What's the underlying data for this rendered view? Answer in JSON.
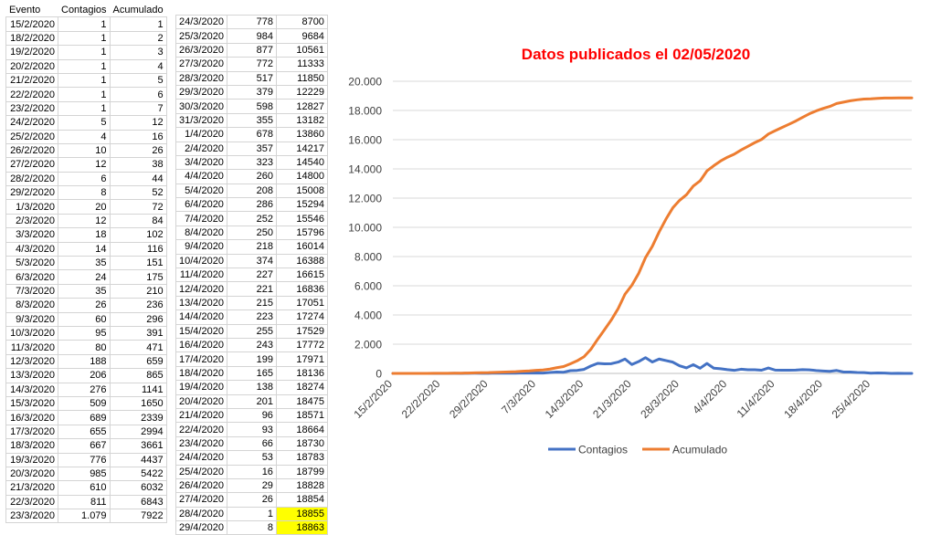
{
  "table1": {
    "headers": [
      "Evento",
      "Contagios",
      "Acumulado"
    ],
    "rows": [
      [
        "15/2/2020",
        "1",
        "1"
      ],
      [
        "18/2/2020",
        "1",
        "2"
      ],
      [
        "19/2/2020",
        "1",
        "3"
      ],
      [
        "20/2/2020",
        "1",
        "4"
      ],
      [
        "21/2/2020",
        "1",
        "5"
      ],
      [
        "22/2/2020",
        "1",
        "6"
      ],
      [
        "23/2/2020",
        "1",
        "7"
      ],
      [
        "24/2/2020",
        "5",
        "12"
      ],
      [
        "25/2/2020",
        "4",
        "16"
      ],
      [
        "26/2/2020",
        "10",
        "26"
      ],
      [
        "27/2/2020",
        "12",
        "38"
      ],
      [
        "28/2/2020",
        "6",
        "44"
      ],
      [
        "29/2/2020",
        "8",
        "52"
      ],
      [
        "1/3/2020",
        "20",
        "72"
      ],
      [
        "2/3/2020",
        "12",
        "84"
      ],
      [
        "3/3/2020",
        "18",
        "102"
      ],
      [
        "4/3/2020",
        "14",
        "116"
      ],
      [
        "5/3/2020",
        "35",
        "151"
      ],
      [
        "6/3/2020",
        "24",
        "175"
      ],
      [
        "7/3/2020",
        "35",
        "210"
      ],
      [
        "8/3/2020",
        "26",
        "236"
      ],
      [
        "9/3/2020",
        "60",
        "296"
      ],
      [
        "10/3/2020",
        "95",
        "391"
      ],
      [
        "11/3/2020",
        "80",
        "471"
      ],
      [
        "12/3/2020",
        "188",
        "659"
      ],
      [
        "13/3/2020",
        "206",
        "865"
      ],
      [
        "14/3/2020",
        "276",
        "1141"
      ],
      [
        "15/3/2020",
        "509",
        "1650"
      ],
      [
        "16/3/2020",
        "689",
        "2339"
      ],
      [
        "17/3/2020",
        "655",
        "2994"
      ],
      [
        "18/3/2020",
        "667",
        "3661"
      ],
      [
        "19/3/2020",
        "776",
        "4437"
      ],
      [
        "20/3/2020",
        "985",
        "5422"
      ],
      [
        "21/3/2020",
        "610",
        "6032"
      ],
      [
        "22/3/2020",
        "811",
        "6843"
      ],
      [
        "23/3/2020",
        "1.079",
        "7922"
      ]
    ]
  },
  "table2": {
    "rows": [
      [
        "24/3/2020",
        "778",
        "8700"
      ],
      [
        "25/3/2020",
        "984",
        "9684"
      ],
      [
        "26/3/2020",
        "877",
        "10561"
      ],
      [
        "27/3/2020",
        "772",
        "11333"
      ],
      [
        "28/3/2020",
        "517",
        "11850"
      ],
      [
        "29/3/2020",
        "379",
        "12229"
      ],
      [
        "30/3/2020",
        "598",
        "12827"
      ],
      [
        "31/3/2020",
        "355",
        "13182"
      ],
      [
        "1/4/2020",
        "678",
        "13860"
      ],
      [
        "2/4/2020",
        "357",
        "14217"
      ],
      [
        "3/4/2020",
        "323",
        "14540"
      ],
      [
        "4/4/2020",
        "260",
        "14800"
      ],
      [
        "5/4/2020",
        "208",
        "15008"
      ],
      [
        "6/4/2020",
        "286",
        "15294"
      ],
      [
        "7/4/2020",
        "252",
        "15546"
      ],
      [
        "8/4/2020",
        "250",
        "15796"
      ],
      [
        "9/4/2020",
        "218",
        "16014"
      ],
      [
        "10/4/2020",
        "374",
        "16388"
      ],
      [
        "11/4/2020",
        "227",
        "16615"
      ],
      [
        "12/4/2020",
        "221",
        "16836"
      ],
      [
        "13/4/2020",
        "215",
        "17051"
      ],
      [
        "14/4/2020",
        "223",
        "17274"
      ],
      [
        "15/4/2020",
        "255",
        "17529"
      ],
      [
        "16/4/2020",
        "243",
        "17772"
      ],
      [
        "17/4/2020",
        "199",
        "17971"
      ],
      [
        "18/4/2020",
        "165",
        "18136"
      ],
      [
        "19/4/2020",
        "138",
        "18274"
      ],
      [
        "20/4/2020",
        "201",
        "18475"
      ],
      [
        "21/4/2020",
        "96",
        "18571"
      ],
      [
        "22/4/2020",
        "93",
        "18664"
      ],
      [
        "23/4/2020",
        "66",
        "18730"
      ],
      [
        "24/4/2020",
        "53",
        "18783"
      ],
      [
        "25/4/2020",
        "16",
        "18799"
      ],
      [
        "26/4/2020",
        "29",
        "18828"
      ],
      [
        "27/4/2020",
        "26",
        "18854"
      ],
      [
        "28/4/2020",
        "1",
        "18855"
      ],
      [
        "29/4/2020",
        "8",
        "18863"
      ]
    ],
    "highlight_color": "#ffff00",
    "highlight_rows": [
      35,
      36
    ]
  },
  "chart_data": {
    "type": "line",
    "title": "Datos publicados el 02/05/2020",
    "title_color": "#ff0000",
    "ylim": [
      0,
      20000
    ],
    "y_ticks": [
      0,
      2000,
      4000,
      6000,
      8000,
      10000,
      12000,
      14000,
      16000,
      18000,
      20000
    ],
    "y_tick_labels": [
      "0",
      "2.000",
      "4.000",
      "6.000",
      "8.000",
      "10.000",
      "12.000",
      "14.000",
      "16.000",
      "18.000",
      "20.000"
    ],
    "x_start": "15/2/2020",
    "x_end": "1/5/2020",
    "x_tick_labels": [
      "15/2/2020",
      "22/2/2020",
      "29/2/2020",
      "7/3/2020",
      "14/3/2020",
      "21/3/2020",
      "28/3/2020",
      "4/4/2020",
      "11/4/2020",
      "18/4/2020",
      "25/4/2020"
    ],
    "grid": true,
    "legend_position": "bottom",
    "dates": [
      "15/2/2020",
      "16/2/2020",
      "17/2/2020",
      "18/2/2020",
      "19/2/2020",
      "20/2/2020",
      "21/2/2020",
      "22/2/2020",
      "23/2/2020",
      "24/2/2020",
      "25/2/2020",
      "26/2/2020",
      "27/2/2020",
      "28/2/2020",
      "29/2/2020",
      "1/3/2020",
      "2/3/2020",
      "3/3/2020",
      "4/3/2020",
      "5/3/2020",
      "6/3/2020",
      "7/3/2020",
      "8/3/2020",
      "9/3/2020",
      "10/3/2020",
      "11/3/2020",
      "12/3/2020",
      "13/3/2020",
      "14/3/2020",
      "15/3/2020",
      "16/3/2020",
      "17/3/2020",
      "18/3/2020",
      "19/3/2020",
      "20/3/2020",
      "21/3/2020",
      "22/3/2020",
      "23/3/2020",
      "24/3/2020",
      "25/3/2020",
      "26/3/2020",
      "27/3/2020",
      "28/3/2020",
      "29/3/2020",
      "30/3/2020",
      "31/3/2020",
      "1/4/2020",
      "2/4/2020",
      "3/4/2020",
      "4/4/2020",
      "5/4/2020",
      "6/4/2020",
      "7/4/2020",
      "8/4/2020",
      "9/4/2020",
      "10/4/2020",
      "11/4/2020",
      "12/4/2020",
      "13/4/2020",
      "14/4/2020",
      "15/4/2020",
      "16/4/2020",
      "17/4/2020",
      "18/4/2020",
      "19/4/2020",
      "20/4/2020",
      "21/4/2020",
      "22/4/2020",
      "23/4/2020",
      "24/4/2020",
      "25/4/2020",
      "26/4/2020",
      "27/4/2020",
      "28/4/2020",
      "29/4/2020",
      "30/4/2020",
      "1/5/2020"
    ],
    "series": [
      {
        "name": "Contagios",
        "color": "#4472c4",
        "values": [
          1,
          0,
          0,
          1,
          1,
          1,
          1,
          1,
          1,
          5,
          4,
          10,
          12,
          6,
          8,
          20,
          12,
          18,
          14,
          35,
          24,
          35,
          26,
          60,
          95,
          80,
          188,
          206,
          276,
          509,
          689,
          655,
          667,
          776,
          985,
          610,
          811,
          1079,
          778,
          984,
          877,
          772,
          517,
          379,
          598,
          355,
          678,
          357,
          323,
          260,
          208,
          286,
          252,
          250,
          218,
          374,
          227,
          221,
          215,
          223,
          255,
          243,
          199,
          165,
          138,
          201,
          96,
          93,
          66,
          53,
          16,
          29,
          26,
          1,
          8,
          0,
          0
        ]
      },
      {
        "name": "Acumulado",
        "color": "#ed7d31",
        "values": [
          1,
          1,
          1,
          2,
          3,
          4,
          5,
          6,
          7,
          12,
          16,
          26,
          38,
          44,
          52,
          72,
          84,
          102,
          116,
          151,
          175,
          210,
          236,
          296,
          391,
          471,
          659,
          865,
          1141,
          1650,
          2339,
          2994,
          3661,
          4437,
          5422,
          6032,
          6843,
          7922,
          8700,
          9684,
          10561,
          11333,
          11850,
          12229,
          12827,
          13182,
          13860,
          14217,
          14540,
          14800,
          15008,
          15294,
          15546,
          15796,
          16014,
          16388,
          16615,
          16836,
          17051,
          17274,
          17529,
          17772,
          17971,
          18136,
          18274,
          18475,
          18571,
          18664,
          18730,
          18783,
          18799,
          18828,
          18854,
          18855,
          18863,
          18863,
          18863
        ]
      }
    ]
  }
}
